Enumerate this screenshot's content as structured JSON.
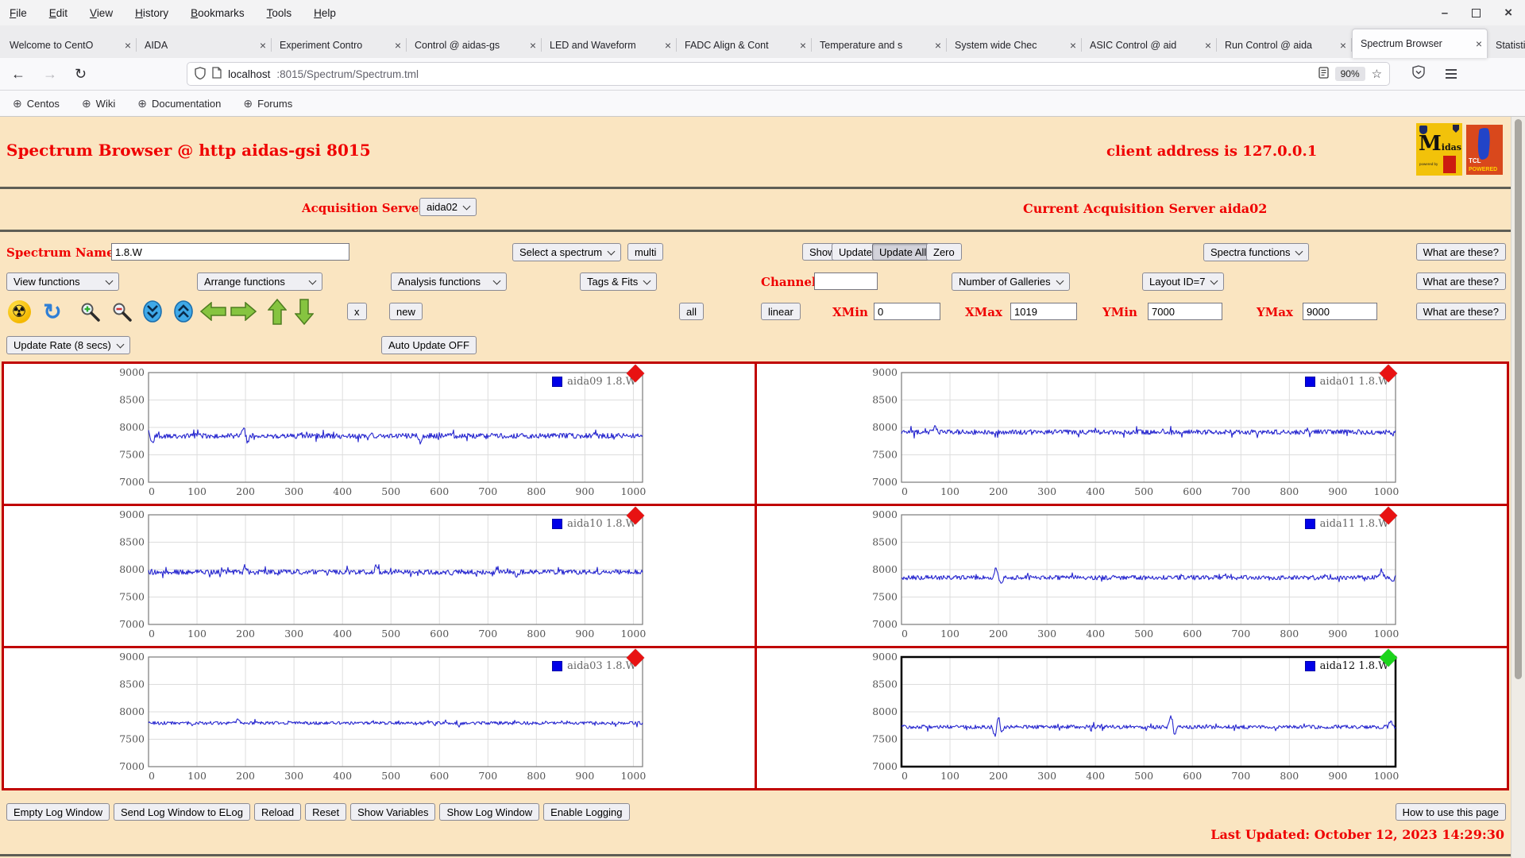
{
  "browser": {
    "menu": [
      "File",
      "Edit",
      "View",
      "History",
      "Bookmarks",
      "Tools",
      "Help"
    ],
    "window_controls": {
      "minimize": "–",
      "close": "×"
    },
    "tabs": [
      {
        "label": "Welcome to CentO"
      },
      {
        "label": "AIDA"
      },
      {
        "label": "Experiment Contro"
      },
      {
        "label": "Control @ aidas-gs"
      },
      {
        "label": "LED and Waveform"
      },
      {
        "label": "FADC Align & Cont"
      },
      {
        "label": "Temperature and s"
      },
      {
        "label": "System wide Chec"
      },
      {
        "label": "ASIC Control @ aid"
      },
      {
        "label": "Run Control @ aida"
      },
      {
        "label": "Spectrum Browser",
        "active": true
      },
      {
        "label": "Statistics @ aidas-g"
      }
    ],
    "tab_close": "×",
    "new_tab_label": "+",
    "back_icon": "←",
    "forward_icon": "→",
    "reload_icon": "↻",
    "star_icon": "☆",
    "globe_icon": "⊕",
    "url": {
      "host": "localhost",
      "rest": ":8015/Spectrum/Spectrum.tml"
    },
    "zoom_badge": "90%",
    "bookmarks": [
      {
        "label": "Centos"
      },
      {
        "label": "Wiki"
      },
      {
        "label": "Documentation"
      },
      {
        "label": "Forums"
      }
    ]
  },
  "page": {
    "title": "Spectrum Browser @ http aidas-gsi 8015",
    "client_address": "client address is 127.0.0.1",
    "logos": {
      "midas_m": "M",
      "midas_rest": "idas",
      "midas_powered": "powered by",
      "tcl": "TCL",
      "tcl_powered": "POWERED"
    },
    "acquisition_servers_label": "Acquisition Servers",
    "acquisition_server_value": "aida02",
    "current_server_text": "Current Acquisition Server aida02",
    "spectrum_name_label": "Spectrum Name:",
    "spectrum_name_value": "1.8.W",
    "select_spectrum": "Select a spectrum",
    "multi_button": "multi",
    "show_button": "Show",
    "update_button": "Update",
    "update_all_button": "Update All",
    "zero_button": "Zero",
    "spectra_functions": "Spectra functions",
    "what_are_these": "What are these?",
    "view_functions": "View functions",
    "arrange_functions": "Arrange functions",
    "analysis_functions": "Analysis functions",
    "tags_fits": "Tags & Fits",
    "channel_label": "Channel:",
    "channel_value": "",
    "number_of_galleries": "Number of Galleries",
    "layout_id": "Layout ID=7",
    "x_button": "x",
    "new_button": "new",
    "all_button": "all",
    "linear_button": "linear",
    "xmin_label": "XMin",
    "xmin_value": "0",
    "xmax_label": "XMax",
    "xmax_value": "1019",
    "ymin_label": "YMin",
    "ymin_value": "7000",
    "ymax_label": "YMax",
    "ymax_value": "9000",
    "update_rate": "Update Rate (8 secs)",
    "auto_update": "Auto Update OFF",
    "radiation_icon_glyph": "☢",
    "refresh_icon_glyph": "↻",
    "footer_buttons": [
      "Empty Log Window",
      "Send Log Window to ELog",
      "Reload",
      "Reset",
      "Show Variables",
      "Show Log Window",
      "Enable Logging"
    ],
    "how_to_button": "How to use this page",
    "last_updated": "Last Updated: October 12, 2023 14:29:30",
    "colors": {
      "accent_red": "#ef0000",
      "grid_border_red": "#c00000",
      "page_bg": "#fae5c1"
    }
  },
  "chart_data": {
    "type": "line",
    "xlim": [
      0,
      1019
    ],
    "ylim": [
      7000,
      9000
    ],
    "xticks": [
      0,
      100,
      200,
      300,
      400,
      500,
      600,
      700,
      800,
      900,
      1000
    ],
    "yticks": [
      7000,
      7500,
      8000,
      8500,
      9000
    ],
    "grid": true,
    "line_color": "#2727cf",
    "legend_square_color": "#0000e8",
    "legend_position": "top-right",
    "charts": [
      {
        "legend": "aida09 1.8.W",
        "marker_color": "#e81212",
        "baseline": 7845,
        "noise": 52,
        "seed": 41,
        "spikes": [
          {
            "x": 8,
            "amp": -190
          },
          {
            "x": 196,
            "amp": 190
          },
          {
            "x": 204,
            "amp": -160
          },
          {
            "x": 560,
            "amp": -210
          },
          {
            "x": 920,
            "amp": 120
          }
        ]
      },
      {
        "legend": "aida01 1.8.W",
        "marker_color": "#e81212",
        "baseline": 7915,
        "noise": 48,
        "seed": 7,
        "spikes": [
          {
            "x": 70,
            "amp": 120
          },
          {
            "x": 1012,
            "amp": -70
          }
        ]
      },
      {
        "legend": "aida10 1.8.W",
        "marker_color": "#e81212",
        "baseline": 7955,
        "noise": 50,
        "seed": 99,
        "spikes": [
          {
            "x": 200,
            "amp": 150
          },
          {
            "x": 470,
            "amp": 140
          },
          {
            "x": 760,
            "amp": -120
          }
        ]
      },
      {
        "legend": "aida11 1.8.W",
        "marker_color": "#e81212",
        "baseline": 7855,
        "noise": 45,
        "seed": 23,
        "spikes": [
          {
            "x": 195,
            "amp": 230
          },
          {
            "x": 205,
            "amp": -140
          },
          {
            "x": 990,
            "amp": 190
          },
          {
            "x": 1012,
            "amp": -80
          }
        ]
      },
      {
        "legend": "aida03 1.8.W",
        "marker_color": "#e81212",
        "baseline": 7795,
        "noise": 32,
        "seed": 67,
        "spikes": [
          {
            "x": 185,
            "amp": 110
          },
          {
            "x": 640,
            "amp": -80
          }
        ]
      },
      {
        "legend": "aida12 1.8.W",
        "marker_color": "#1bd41b",
        "baseline": 7725,
        "noise": 38,
        "seed": 55,
        "selected": true,
        "spikes": [
          {
            "x": 193,
            "amp": -240
          },
          {
            "x": 200,
            "amp": 290
          },
          {
            "x": 206,
            "amp": -140
          },
          {
            "x": 556,
            "amp": 270
          },
          {
            "x": 563,
            "amp": -170
          },
          {
            "x": 1010,
            "amp": 160
          }
        ]
      }
    ]
  }
}
